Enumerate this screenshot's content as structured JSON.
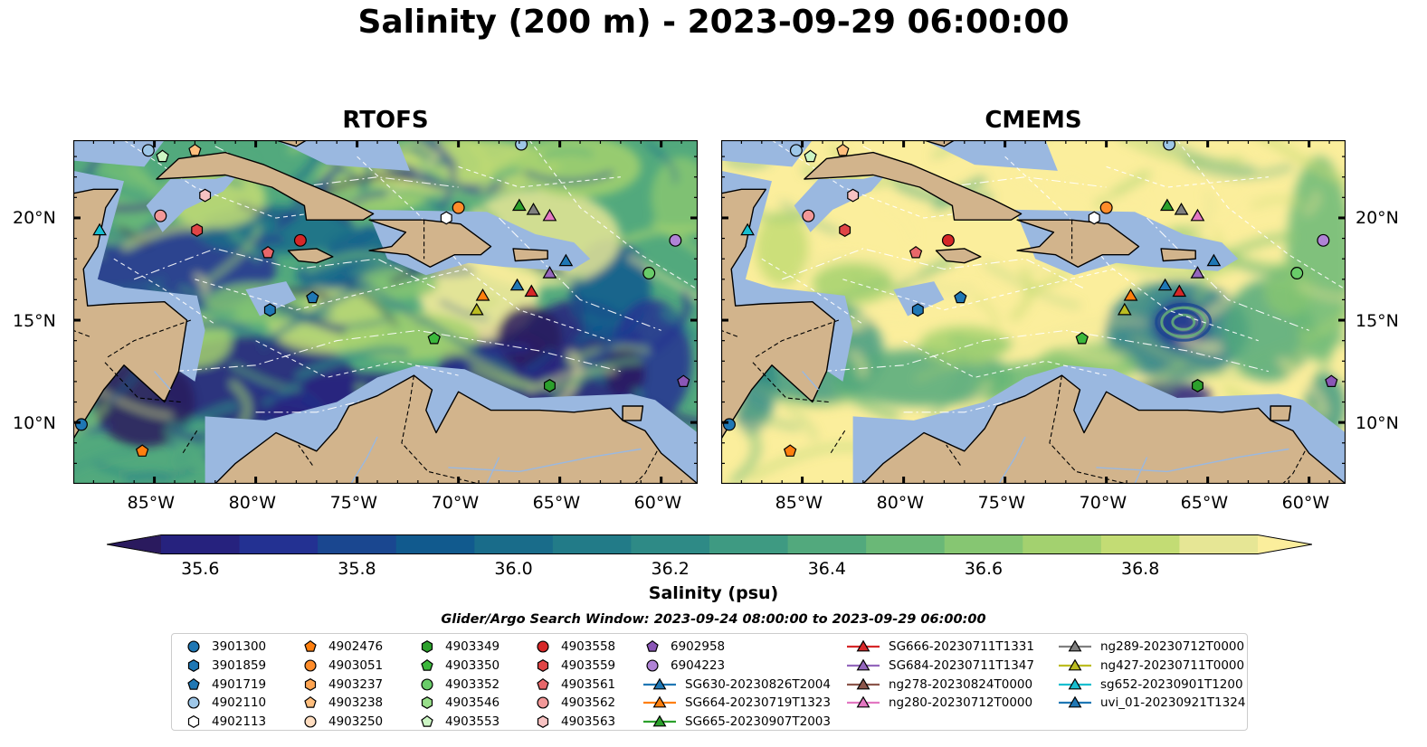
{
  "title": "Salinity (200 m) - 2023-09-29 06:00:00",
  "panels": [
    {
      "name": "RTOFS",
      "theme": "rtofs"
    },
    {
      "name": "CMEMS",
      "theme": "cmems"
    }
  ],
  "axes": {
    "x_ticks": [
      "85°W",
      "80°W",
      "75°W",
      "70°W",
      "65°W",
      "60°W"
    ],
    "x_tick_values": [
      -85,
      -80,
      -75,
      -70,
      -65,
      -60
    ],
    "y_ticks": [
      "20°N",
      "15°N",
      "10°N"
    ],
    "y_tick_values": [
      20,
      15,
      10
    ],
    "lon_range": [
      -89,
      -58.2
    ],
    "lat_range": [
      7,
      23.8
    ]
  },
  "colorbar": {
    "label": "Salinity (psu)",
    "ticks": [
      "35.6",
      "35.8",
      "36.0",
      "36.2",
      "36.4",
      "36.6",
      "36.8"
    ],
    "tick_values": [
      35.6,
      35.8,
      36.0,
      36.2,
      36.4,
      36.6,
      36.8
    ],
    "range": [
      35.55,
      36.95
    ],
    "extend": "both",
    "colormap": [
      "#2a1a5e",
      "#26227e",
      "#233192",
      "#1a4790",
      "#115a8e",
      "#196c8a",
      "#227b88",
      "#2e8a86",
      "#3e9a82",
      "#52a97d",
      "#6ab877",
      "#86c672",
      "#a3d16f",
      "#c3dc74",
      "#e6e695",
      "#fbee9c"
    ],
    "land_color": "#d2b48c",
    "shelf_color": "#9ab8e0"
  },
  "search_window": "Glider/Argo Search Window: 2023-09-24 08:00:00 to 2023-09-29 06:00:00",
  "legend": [
    [
      {
        "label": "3901300",
        "marker": "circle",
        "color": "#1f77b4"
      },
      {
        "label": "3901859",
        "marker": "hexagon",
        "color": "#1f77b4"
      },
      {
        "label": "4901719",
        "marker": "pentagon",
        "color": "#1f77b4"
      },
      {
        "label": "4902110",
        "marker": "circle",
        "color": "#9ec7e8"
      },
      {
        "label": "4902113",
        "marker": "hexagon",
        "color": "#ffffff"
      }
    ],
    [
      {
        "label": "4902476",
        "marker": "pentagon",
        "color": "#ff7f0e"
      },
      {
        "label": "4903051",
        "marker": "circle",
        "color": "#ff8c2a"
      },
      {
        "label": "4903237",
        "marker": "hexagon",
        "color": "#ffa552"
      },
      {
        "label": "4903238",
        "marker": "pentagon",
        "color": "#ffbe7d"
      },
      {
        "label": "4903250",
        "marker": "circle",
        "color": "#ffddc0"
      }
    ],
    [
      {
        "label": "4903349",
        "marker": "hexagon",
        "color": "#2ca02c"
      },
      {
        "label": "4903350",
        "marker": "pentagon",
        "color": "#3cb83c"
      },
      {
        "label": "4903352",
        "marker": "circle",
        "color": "#69cc69"
      },
      {
        "label": "4903546",
        "marker": "hexagon",
        "color": "#98df8a"
      },
      {
        "label": "4903553",
        "marker": "pentagon",
        "color": "#ccf5c4"
      }
    ],
    [
      {
        "label": "4903558",
        "marker": "circle",
        "color": "#d62728"
      },
      {
        "label": "4903559",
        "marker": "hexagon",
        "color": "#e04546"
      },
      {
        "label": "4903561",
        "marker": "pentagon",
        "color": "#e8676a"
      },
      {
        "label": "4903562",
        "marker": "circle",
        "color": "#f29898"
      },
      {
        "label": "4903563",
        "marker": "hexagon",
        "color": "#f7c2c2"
      }
    ],
    [
      {
        "label": "6902958",
        "marker": "pentagon",
        "color": "#8a56b6"
      },
      {
        "label": "6904223",
        "marker": "circle",
        "color": "#b083d6"
      },
      {
        "label": "SG630-20230826T2004",
        "marker": "triangle",
        "color": "#1f77b4"
      },
      {
        "label": "SG664-20230719T1323",
        "marker": "triangle",
        "color": "#ff7f0e"
      },
      {
        "label": "SG665-20230907T2003",
        "marker": "triangle",
        "color": "#2ca02c"
      }
    ],
    [
      {
        "label": "SG666-20230711T1331",
        "marker": "triangle",
        "color": "#d62728"
      },
      {
        "label": "SG684-20230711T1347",
        "marker": "triangle",
        "color": "#9467bd"
      },
      {
        "label": "ng278-20230824T0000",
        "marker": "triangle",
        "color": "#8c564b"
      },
      {
        "label": "ng280-20230712T0000",
        "marker": "triangle",
        "color": "#e377c2"
      }
    ],
    [
      {
        "label": "ng289-20230712T0000",
        "marker": "triangle",
        "color": "#7f7f7f"
      },
      {
        "label": "ng427-20230711T0000",
        "marker": "triangle",
        "color": "#bcbd22"
      },
      {
        "label": "sg652-20230901T1200",
        "marker": "triangle",
        "color": "#17becf"
      },
      {
        "label": "uvi_01-20230921T1324",
        "marker": "triangle",
        "color": "#1f77b4"
      }
    ]
  ],
  "platform_positions": [
    {
      "label": "3901300",
      "lon": -88.6,
      "lat": 9.9
    },
    {
      "label": "4902476",
      "lon": -85.6,
      "lat": 8.6
    },
    {
      "label": "4902110",
      "lon": -85.3,
      "lat": 23.3
    },
    {
      "label": "4903553",
      "lon": -84.6,
      "lat": 23.0
    },
    {
      "label": "4903238",
      "lon": -83.0,
      "lat": 23.3
    },
    {
      "label": "4903563",
      "lon": -82.5,
      "lat": 21.1
    },
    {
      "label": "4903562",
      "lon": -84.7,
      "lat": 20.1
    },
    {
      "label": "sg652-20230901T1200",
      "lon": -87.7,
      "lat": 19.4
    },
    {
      "label": "4903559",
      "lon": -82.9,
      "lat": 19.4
    },
    {
      "label": "4903561",
      "lon": -79.4,
      "lat": 18.3
    },
    {
      "label": "4903558",
      "lon": -77.8,
      "lat": 18.9
    },
    {
      "label": "4902113",
      "lon": -70.6,
      "lat": 20.0
    },
    {
      "label": "4903051",
      "lon": -70.0,
      "lat": 20.5
    },
    {
      "label": "4902110",
      "lon": -66.9,
      "lat": 23.6
    },
    {
      "label": "SG665-20230907T2003",
      "lon": -67.0,
      "lat": 20.6
    },
    {
      "label": "ng289-20230712T0000",
      "lon": -66.3,
      "lat": 20.4
    },
    {
      "label": "ng280-20230712T0000",
      "lon": -65.5,
      "lat": 20.1
    },
    {
      "label": "6904223",
      "lon": -59.3,
      "lat": 18.9
    },
    {
      "label": "uvi_01-20230921T1324",
      "lon": -64.7,
      "lat": 17.9
    },
    {
      "label": "SG684-20230711T1347",
      "lon": -65.5,
      "lat": 17.3
    },
    {
      "label": "4903352",
      "lon": -60.6,
      "lat": 17.3
    },
    {
      "label": "SG630-20230826T2004",
      "lon": -67.1,
      "lat": 16.7
    },
    {
      "label": "SG666-20230711T1331",
      "lon": -66.4,
      "lat": 16.4
    },
    {
      "label": "4901719",
      "lon": -77.2,
      "lat": 16.1
    },
    {
      "label": "3901859",
      "lon": -79.3,
      "lat": 15.5
    },
    {
      "label": "SG664-20230719T1323",
      "lon": -68.8,
      "lat": 16.2
    },
    {
      "label": "ng427-20230711T0000",
      "lon": -69.1,
      "lat": 15.5
    },
    {
      "label": "4903350",
      "lon": -71.2,
      "lat": 14.1
    },
    {
      "label": "4903349",
      "lon": -65.5,
      "lat": 11.8
    },
    {
      "label": "6902958",
      "lon": -58.9,
      "lat": 12.0
    }
  ]
}
